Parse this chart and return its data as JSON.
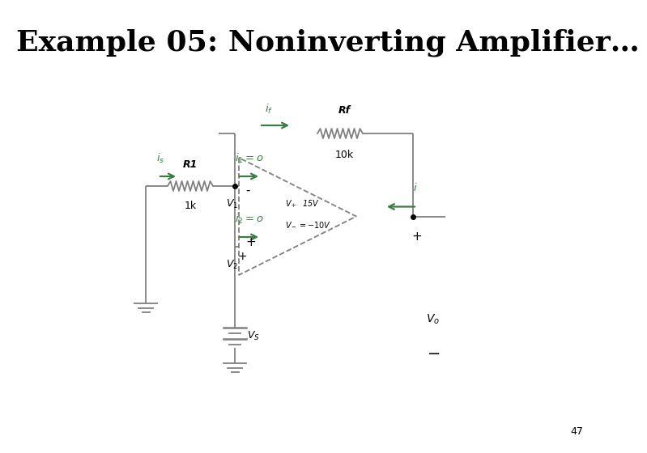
{
  "title": "Example 05: Noninverting Amplifier…",
  "title_fontsize": 26,
  "title_fontweight": "bold",
  "bg_color": "#ffffff",
  "circuit_color": "#808080",
  "green_color": "#3a7d44",
  "text_color": "#000000",
  "page_number": "47"
}
